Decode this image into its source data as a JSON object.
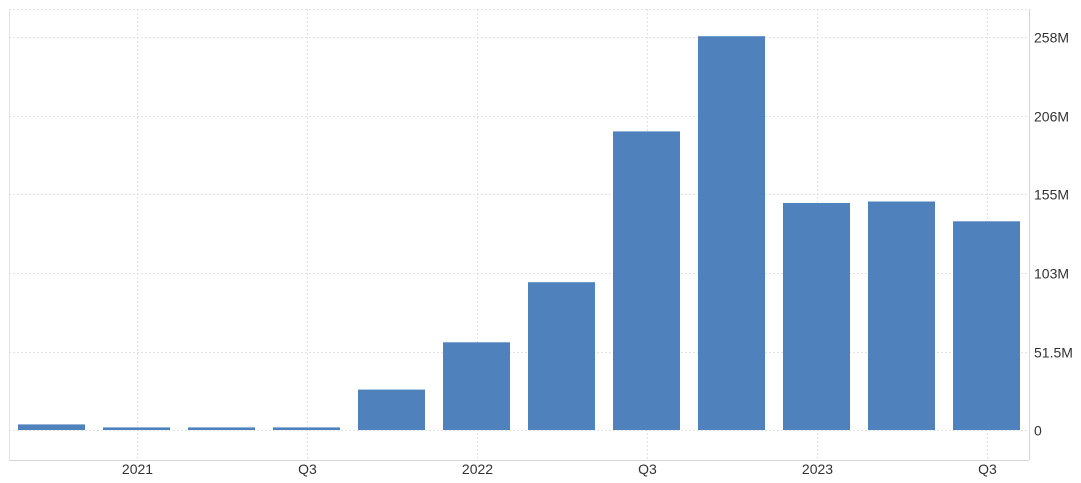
{
  "colors": {
    "bar": "#4f81bd",
    "grid": "#e3e3e3",
    "axis": "#d6d6d6",
    "text": "#333333"
  },
  "chart_data": {
    "type": "bar",
    "title": "",
    "xlabel": "",
    "ylabel": "",
    "categories": [
      "2021 Q1",
      "2021 Q2",
      "2021 Q3",
      "2021 Q4",
      "2022 Q1",
      "2022 Q2",
      "2022 Q3",
      "2022 Q4",
      "2023 Q1",
      "2023 Q2",
      "2023 Q3",
      "2023 Q4"
    ],
    "values": [
      3.7,
      1.7,
      1.7,
      1.7,
      26.5,
      57.6,
      97,
      196,
      258.5,
      149,
      150,
      137
    ],
    "x_tick_labels": [
      {
        "category_index": 1,
        "label": "2021"
      },
      {
        "category_index": 3,
        "label": "Q3"
      },
      {
        "category_index": 5,
        "label": "2022"
      },
      {
        "category_index": 7,
        "label": "Q3"
      },
      {
        "category_index": 9,
        "label": "2023"
      },
      {
        "category_index": 11,
        "label": "Q3"
      }
    ],
    "y_ticks": [
      {
        "value": 0,
        "label": "0"
      },
      {
        "value": 51.5,
        "label": "51.5M"
      },
      {
        "value": 103,
        "label": "103M"
      },
      {
        "value": 155,
        "label": "155M"
      },
      {
        "value": 206,
        "label": "206M"
      },
      {
        "value": 258,
        "label": "258M"
      }
    ],
    "ylim": [
      0,
      258
    ],
    "grid": true,
    "legend": "none",
    "y_axis_position": "right"
  }
}
